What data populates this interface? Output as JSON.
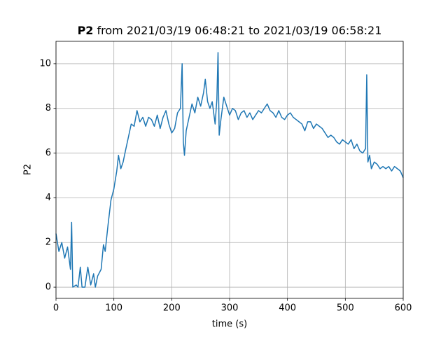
{
  "chart_data": {
    "type": "line",
    "title": "P2",
    "title_suffix": "from 2021/03/19 06:48:21 to 2021/03/19 06:58:21",
    "x_label": "time (s)",
    "y_label": "P2",
    "x": [
      0,
      5,
      10,
      15,
      20,
      25,
      27,
      29,
      35,
      38,
      42,
      45,
      50,
      55,
      60,
      65,
      68,
      72,
      78,
      82,
      85,
      90,
      95,
      100,
      105,
      108,
      112,
      116,
      120,
      125,
      130,
      135,
      140,
      145,
      150,
      155,
      160,
      165,
      170,
      175,
      180,
      185,
      190,
      195,
      200,
      205,
      210,
      215,
      218,
      220,
      222,
      225,
      230,
      235,
      240,
      245,
      250,
      255,
      258,
      262,
      266,
      270,
      275,
      278,
      280,
      282,
      285,
      290,
      295,
      300,
      305,
      310,
      315,
      320,
      325,
      330,
      335,
      340,
      345,
      350,
      355,
      360,
      365,
      370,
      375,
      380,
      385,
      390,
      395,
      400,
      405,
      410,
      415,
      420,
      425,
      430,
      435,
      440,
      445,
      450,
      455,
      460,
      465,
      470,
      475,
      480,
      485,
      490,
      495,
      500,
      505,
      510,
      515,
      520,
      525,
      530,
      535,
      537,
      539,
      542,
      545,
      550,
      555,
      560,
      565,
      570,
      575,
      580,
      585,
      590,
      595,
      600
    ],
    "series": [
      {
        "name": "P2",
        "color": "#1f77b4",
        "values": [
          2.4,
          1.6,
          2.0,
          1.3,
          1.8,
          0.8,
          2.9,
          0.0,
          0.1,
          0.0,
          0.9,
          0.0,
          0.0,
          0.9,
          0.1,
          0.6,
          0.0,
          0.5,
          0.8,
          1.9,
          1.6,
          2.8,
          3.9,
          4.4,
          5.2,
          5.9,
          5.3,
          5.6,
          6.1,
          6.7,
          7.3,
          7.2,
          7.9,
          7.4,
          7.6,
          7.2,
          7.6,
          7.5,
          7.2,
          7.7,
          7.1,
          7.6,
          7.9,
          7.3,
          6.9,
          7.1,
          7.8,
          8.0,
          10.0,
          6.5,
          5.9,
          7.0,
          7.6,
          8.2,
          7.8,
          8.5,
          8.1,
          8.7,
          9.3,
          8.3,
          8.0,
          8.3,
          7.3,
          8.4,
          10.5,
          6.8,
          7.5,
          8.5,
          8.1,
          7.7,
          8.0,
          7.9,
          7.5,
          7.8,
          7.9,
          7.6,
          7.8,
          7.5,
          7.7,
          7.9,
          7.8,
          8.0,
          8.2,
          7.9,
          7.8,
          7.6,
          7.9,
          7.6,
          7.5,
          7.7,
          7.8,
          7.6,
          7.5,
          7.4,
          7.3,
          7.0,
          7.4,
          7.4,
          7.1,
          7.3,
          7.2,
          7.1,
          6.9,
          6.7,
          6.8,
          6.7,
          6.5,
          6.4,
          6.6,
          6.5,
          6.4,
          6.6,
          6.2,
          6.4,
          6.1,
          6.0,
          6.2,
          9.5,
          5.6,
          5.9,
          5.3,
          5.6,
          5.5,
          5.3,
          5.4,
          5.3,
          5.4,
          5.2,
          5.4,
          5.3,
          5.2,
          4.9
        ]
      }
    ],
    "xlim": [
      0,
      600
    ],
    "ylim": [
      -0.5,
      11
    ],
    "xticks": [
      0,
      100,
      200,
      300,
      400,
      500,
      600
    ],
    "yticks": [
      0,
      2,
      4,
      6,
      8,
      10
    ],
    "grid": true
  }
}
